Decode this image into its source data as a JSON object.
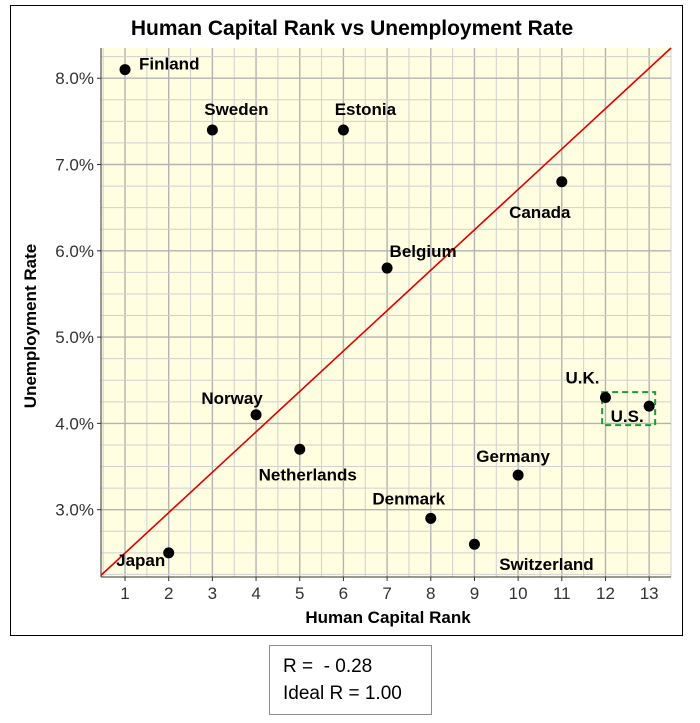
{
  "chart_data": {
    "type": "scatter",
    "title": "Human Capital Rank vs Unemployment Rate",
    "xlabel": "Human Capital Rank",
    "ylabel": "Unemployment Rate",
    "xlim": [
      0.45,
      13.5
    ],
    "ylim": [
      2.22,
      8.35
    ],
    "x_ticks": [
      1,
      2,
      3,
      4,
      5,
      6,
      7,
      8,
      9,
      10,
      11,
      12,
      13
    ],
    "y_ticks": [
      3.0,
      4.0,
      5.0,
      6.0,
      7.0,
      8.0
    ],
    "y_tick_labels": [
      "3.0%",
      "4.0%",
      "5.0%",
      "6.0%",
      "7.0%",
      "8.0%"
    ],
    "grid": true,
    "background_color": "#fffee0",
    "point_color": "#000000",
    "points": [
      {
        "label": "Finland",
        "x": 1,
        "y": 8.1
      },
      {
        "label": "Japan",
        "x": 2,
        "y": 2.5
      },
      {
        "label": "Sweden",
        "x": 3,
        "y": 7.4
      },
      {
        "label": "Norway",
        "x": 4,
        "y": 4.1
      },
      {
        "label": "Netherlands",
        "x": 5,
        "y": 3.7
      },
      {
        "label": "Estonia",
        "x": 6,
        "y": 7.4
      },
      {
        "label": "Belgium",
        "x": 7,
        "y": 5.8
      },
      {
        "label": "Denmark",
        "x": 8,
        "y": 2.9
      },
      {
        "label": "Switzerland",
        "x": 9,
        "y": 2.6
      },
      {
        "label": "Germany",
        "x": 10,
        "y": 3.4
      },
      {
        "label": "Canada",
        "x": 11,
        "y": 6.8
      },
      {
        "label": "U.K.",
        "x": 12,
        "y": 4.3
      },
      {
        "label": "U.S.",
        "x": 13,
        "y": 4.2
      }
    ],
    "reference_line": {
      "color": "#e00000",
      "from": [
        0.45,
        2.24
      ],
      "to": [
        13.5,
        8.35
      ]
    },
    "highlight": {
      "label": "U.S.",
      "color": "#1a9a3a",
      "style": "dashed"
    }
  },
  "stats": {
    "r_line": "R =  - 0.28",
    "ideal_line": "Ideal R = 1.00"
  }
}
